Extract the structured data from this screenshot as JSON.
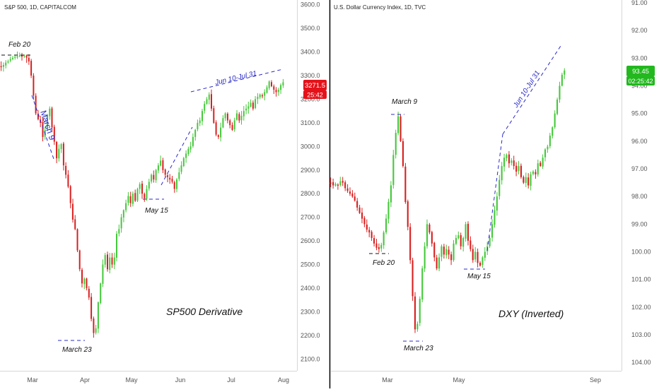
{
  "colors": {
    "up": "#44c83a",
    "down": "#d81f1f",
    "annotation_line": "#2b2bc9",
    "axis_text": "#555555",
    "divider": "#000000",
    "price_badge_left": "#e5121a",
    "price_badge_right": "#22b81e"
  },
  "chart_data": [
    {
      "type": "candlestick",
      "title": "S&P 500, 1D, CAPITALCOM",
      "watermark": "SP500 Derivative",
      "y_ticks": [
        "3600.0",
        "3500.0",
        "3400.0",
        "3300.0",
        "3200.0",
        "3100.0",
        "3000.0",
        "2900.0",
        "2800.0",
        "2700.0",
        "2600.0",
        "2500.0",
        "2400.0",
        "2300.0",
        "2200.0",
        "2100.0"
      ],
      "ylim": [
        2050,
        3620
      ],
      "x_ticks": [
        "Mar",
        "Apr",
        "May",
        "Jun",
        "Jul",
        "Aug"
      ],
      "last_price": "3271.5",
      "countdown": "25:42",
      "annotations": [
        "Feb 20",
        "March 9",
        "March 23",
        "May 15",
        "Jun 10-Jul 31"
      ],
      "series_close": [
        3340,
        3345,
        3355,
        3360,
        3370,
        3375,
        3380,
        3382,
        3386,
        3380,
        3385,
        3376,
        3360,
        3300,
        3215,
        3140,
        3115,
        3100,
        3040,
        3070,
        3130,
        3160,
        3080,
        3020,
        2950,
        2990,
        3010,
        2920,
        2880,
        2830,
        2760,
        2690,
        2650,
        2560,
        2480,
        2420,
        2440,
        2400,
        2360,
        2270,
        2210,
        2230,
        2340,
        2420,
        2500,
        2540,
        2480,
        2530,
        2500,
        2530,
        2630,
        2650,
        2700,
        2730,
        2760,
        2790,
        2760,
        2800,
        2770,
        2820,
        2840,
        2800,
        2780,
        2820,
        2850,
        2880,
        2860,
        2900,
        2920,
        2940,
        2900,
        2880,
        2870,
        2860,
        2850,
        2820,
        2860,
        2890,
        2920,
        2950,
        2970,
        2990,
        3000,
        3040,
        3070,
        3100,
        3110,
        3150,
        3180,
        3200,
        3220,
        3160,
        3100,
        3050,
        3040,
        3080,
        3120,
        3140,
        3110,
        3090,
        3070,
        3110,
        3140,
        3110,
        3130,
        3150,
        3160,
        3170,
        3185,
        3160,
        3200,
        3210,
        3220,
        3215,
        3230,
        3250,
        3275,
        3255,
        3240,
        3230,
        3240,
        3260,
        3271.5
      ]
    },
    {
      "type": "candlestick",
      "title": "U.S. Dollar Currency Index, 1D, TVC",
      "watermark": "DXY (Inverted)",
      "y_ticks": [
        "91.00",
        "92.00",
        "93.00",
        "94.00",
        "95.00",
        "96.00",
        "97.00",
        "98.00",
        "99.00",
        "100.00",
        "101.00",
        "102.00",
        "103.00",
        "104.00"
      ],
      "ylim": [
        104.3,
        90.9
      ],
      "inverted": true,
      "x_ticks": [
        "Mar",
        "May",
        "Sep"
      ],
      "last_price": "93.45",
      "countdown": "02:25:42",
      "annotations": [
        "March 9",
        "Feb 20",
        "March 23",
        "May 15",
        "Jun 10-Jul 31"
      ],
      "series_close": [
        97.5,
        97.6,
        97.55,
        97.6,
        97.45,
        97.5,
        97.7,
        97.8,
        97.9,
        98.0,
        98.15,
        98.4,
        98.6,
        98.8,
        99.0,
        99.2,
        99.3,
        99.5,
        99.7,
        99.85,
        99.9,
        99.75,
        99.3,
        98.8,
        98.2,
        97.6,
        96.5,
        95.7,
        95.1,
        96.0,
        96.9,
        98.2,
        99.1,
        100.3,
        101.6,
        102.8,
        102.6,
        101.7,
        100.6,
        99.8,
        99.0,
        99.3,
        99.7,
        100.2,
        100.6,
        100.2,
        99.8,
        100.1,
        99.9,
        100.1,
        100.3,
        99.7,
        99.5,
        99.4,
        99.8,
        99.5,
        99.0,
        99.6,
        99.9,
        100.3,
        100.0,
        100.4,
        100.5,
        100.2,
        100.0,
        99.8,
        99.5,
        99.0,
        98.5,
        98.0,
        97.4,
        96.9,
        96.6,
        96.5,
        96.8,
        96.7,
        96.9,
        97.1,
        96.9,
        97.3,
        97.5,
        97.3,
        97.6,
        97.2,
        97.1,
        97.2,
        96.8,
        96.9,
        96.6,
        96.3,
        96.2,
        95.8,
        95.5,
        95.0,
        94.5,
        94.0,
        93.6,
        93.45
      ]
    }
  ]
}
